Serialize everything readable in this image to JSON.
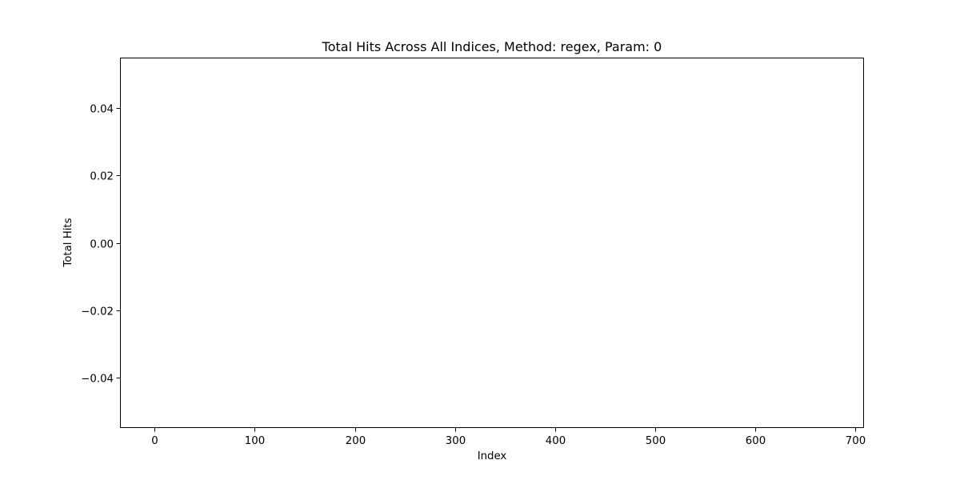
{
  "chart_data": {
    "type": "bar",
    "title": "Total Hits Across All Indices, Method: regex, Param: 0",
    "xlabel": "Index",
    "ylabel": "Total Hits",
    "x": [],
    "values": [],
    "xlim": [
      -34.5,
      708.5
    ],
    "ylim": [
      -0.055,
      0.055
    ],
    "xticks": [
      0,
      100,
      200,
      300,
      400,
      500,
      600,
      700
    ],
    "xtick_labels": [
      "0",
      "100",
      "200",
      "300",
      "400",
      "500",
      "600",
      "700"
    ],
    "yticks": [
      0.04,
      0.02,
      0.0,
      -0.02,
      -0.04
    ],
    "ytick_labels": [
      "0.04",
      "0.02",
      "0.00",
      "−0.02",
      "−0.04"
    ],
    "grid": false,
    "legend": false,
    "colors": {
      "bar": "#1f77b4",
      "axes": "#000000",
      "background": "#ffffff"
    }
  }
}
